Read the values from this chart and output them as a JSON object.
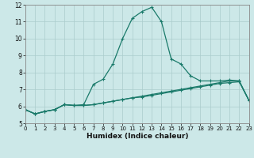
{
  "x": [
    0,
    1,
    2,
    3,
    4,
    5,
    6,
    7,
    8,
    9,
    10,
    11,
    12,
    13,
    14,
    15,
    16,
    17,
    18,
    19,
    20,
    21,
    22,
    23
  ],
  "line1": [
    5.8,
    5.55,
    5.7,
    5.8,
    6.1,
    6.05,
    6.05,
    6.1,
    6.2,
    6.3,
    6.4,
    6.5,
    6.55,
    6.65,
    6.75,
    6.85,
    6.95,
    7.05,
    7.15,
    7.25,
    7.35,
    7.4,
    7.45,
    6.35
  ],
  "line2": [
    5.8,
    5.55,
    5.7,
    5.8,
    6.1,
    6.05,
    6.1,
    7.3,
    7.6,
    8.5,
    10.0,
    11.2,
    11.6,
    11.85,
    11.0,
    8.8,
    8.5,
    7.8,
    7.5,
    7.5,
    7.5,
    7.55,
    7.5,
    6.35
  ],
  "line3": [
    5.8,
    5.55,
    5.7,
    5.8,
    6.1,
    6.05,
    6.05,
    6.1,
    6.2,
    6.3,
    6.4,
    6.5,
    6.6,
    6.7,
    6.8,
    6.9,
    7.0,
    7.1,
    7.2,
    7.3,
    7.4,
    7.5,
    7.5,
    6.35
  ],
  "xlabel": "Humidex (Indice chaleur)",
  "xlim": [
    0,
    23
  ],
  "ylim": [
    5,
    12
  ],
  "yticks": [
    5,
    6,
    7,
    8,
    9,
    10,
    11,
    12
  ],
  "xticks": [
    0,
    1,
    2,
    3,
    4,
    5,
    6,
    7,
    8,
    9,
    10,
    11,
    12,
    13,
    14,
    15,
    16,
    17,
    18,
    19,
    20,
    21,
    22,
    23
  ],
  "line_color": "#1a7a6a",
  "bg_color": "#cce8e8",
  "grid_color": "#aacccc",
  "marker": "+"
}
